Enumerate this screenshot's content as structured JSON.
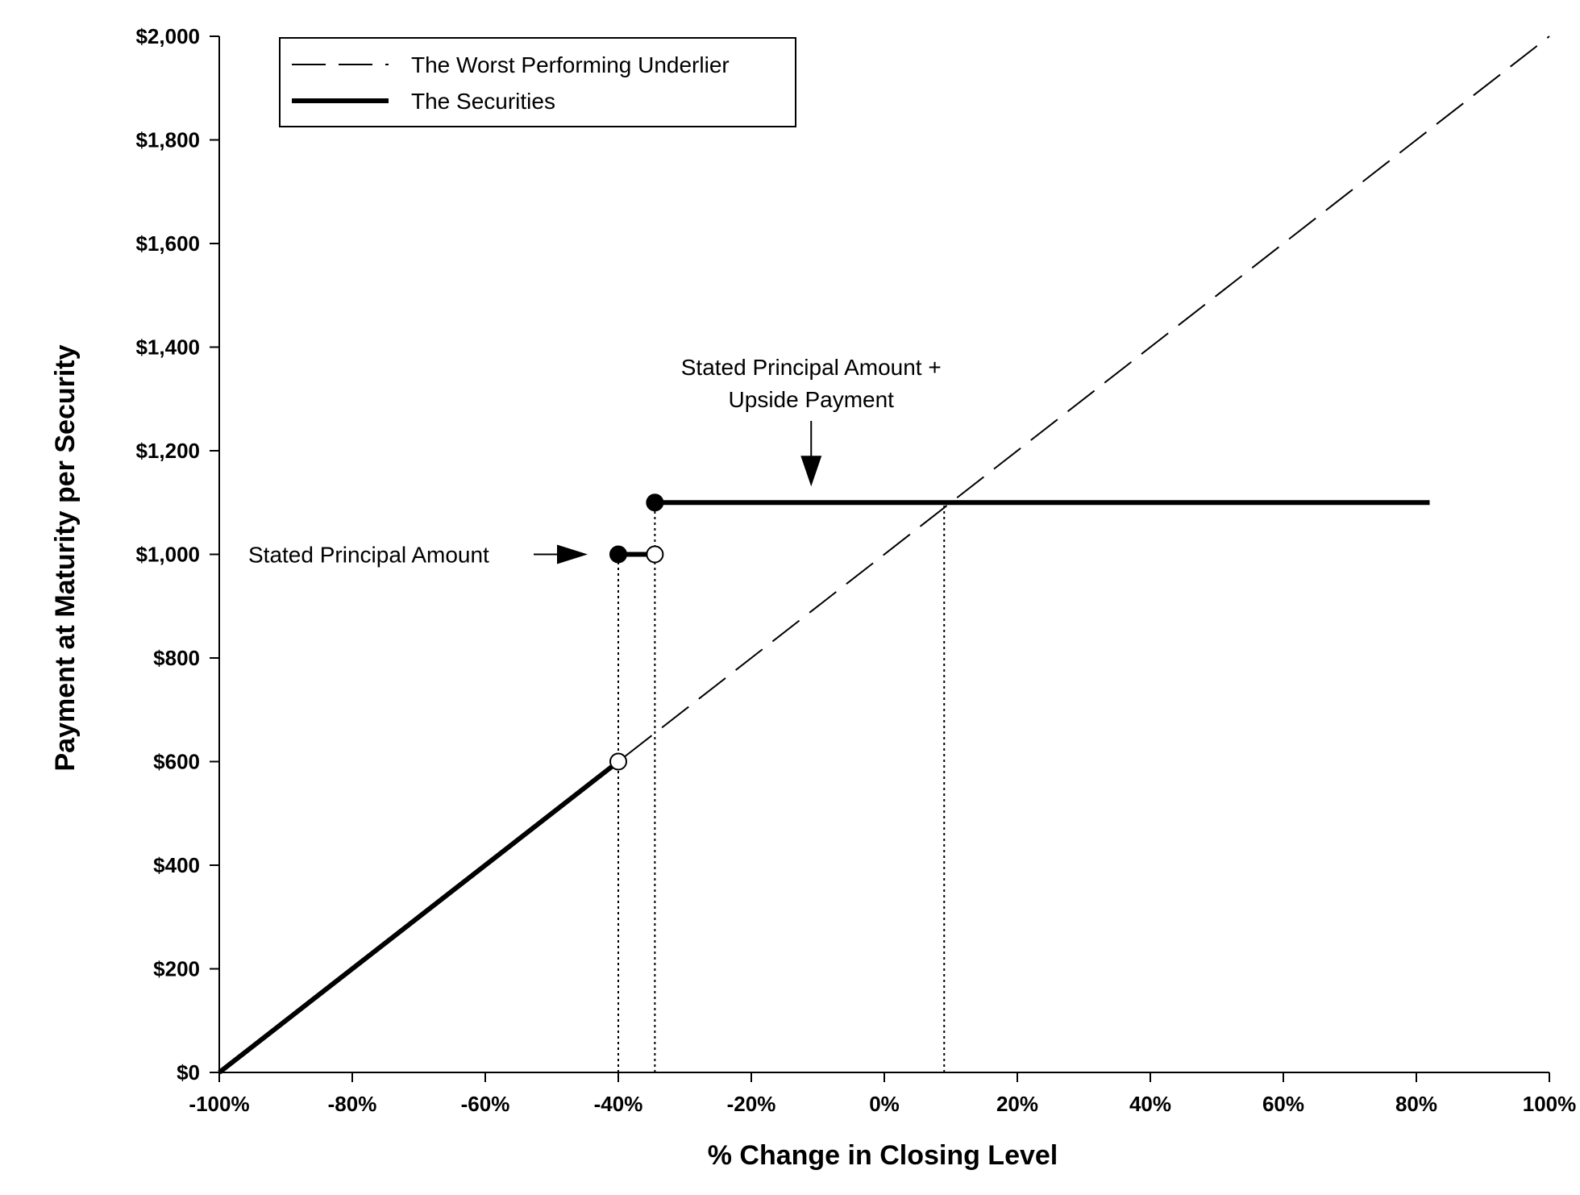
{
  "chart_data": {
    "type": "line",
    "xlabel": "% Change in Closing Level",
    "ylabel": "Payment at Maturity per Security",
    "xlim": [
      -100,
      100
    ],
    "ylim": [
      0,
      2000
    ],
    "x_ticks": [
      -100,
      -80,
      -60,
      -40,
      -20,
      0,
      20,
      40,
      60,
      80,
      100
    ],
    "x_tick_labels": [
      "-100%",
      "-80%",
      "-60%",
      "-40%",
      "-20%",
      "0%",
      "20%",
      "40%",
      "60%",
      "80%",
      "100%"
    ],
    "y_ticks": [
      0,
      200,
      400,
      600,
      800,
      1000,
      1200,
      1400,
      1600,
      1800,
      2000
    ],
    "y_tick_labels": [
      "$0",
      "$200",
      "$400",
      "$600",
      "$800",
      "$1,000",
      "$1,200",
      "$1,400",
      "$1,600",
      "$1,800",
      "$2,000"
    ],
    "grid": false,
    "legend_position": "top-left",
    "series": [
      {
        "name": "The Worst Performing Underlier",
        "style": "dashed",
        "color": "#000000",
        "x": [
          -100,
          100
        ],
        "y": [
          0,
          2000
        ]
      },
      {
        "name": "The Securities",
        "style": "solid-bold",
        "color": "#000000",
        "segments": [
          {
            "x": [
              -100,
              -40
            ],
            "y": [
              0,
              600
            ]
          },
          {
            "x": [
              -40,
              -34.5
            ],
            "y": [
              1000,
              1000
            ]
          },
          {
            "x": [
              -34.5,
              82
            ],
            "y": [
              1100,
              1100
            ]
          }
        ]
      }
    ],
    "markers": [
      {
        "x": -40,
        "y": 600,
        "fill": "open"
      },
      {
        "x": -40,
        "y": 1000,
        "fill": "filled"
      },
      {
        "x": -34.5,
        "y": 1000,
        "fill": "open"
      },
      {
        "x": -34.5,
        "y": 1100,
        "fill": "filled"
      }
    ],
    "reference_lines": [
      {
        "x": -40,
        "y_from": 0,
        "y_to": 1000,
        "style": "dotted"
      },
      {
        "x": -34.5,
        "y_from": 0,
        "y_to": 1100,
        "style": "dotted"
      },
      {
        "x": 9,
        "y_from": 0,
        "y_to": 1100,
        "style": "dotted"
      }
    ],
    "annotations": [
      {
        "lines": [
          "Stated Principal Amount"
        ],
        "arrow": "right",
        "target_x": -40,
        "target_y": 1000
      },
      {
        "lines": [
          "Stated Principal Amount +",
          "Upside Payment"
        ],
        "arrow": "down",
        "target_x": -11,
        "target_y": 1100
      }
    ]
  }
}
